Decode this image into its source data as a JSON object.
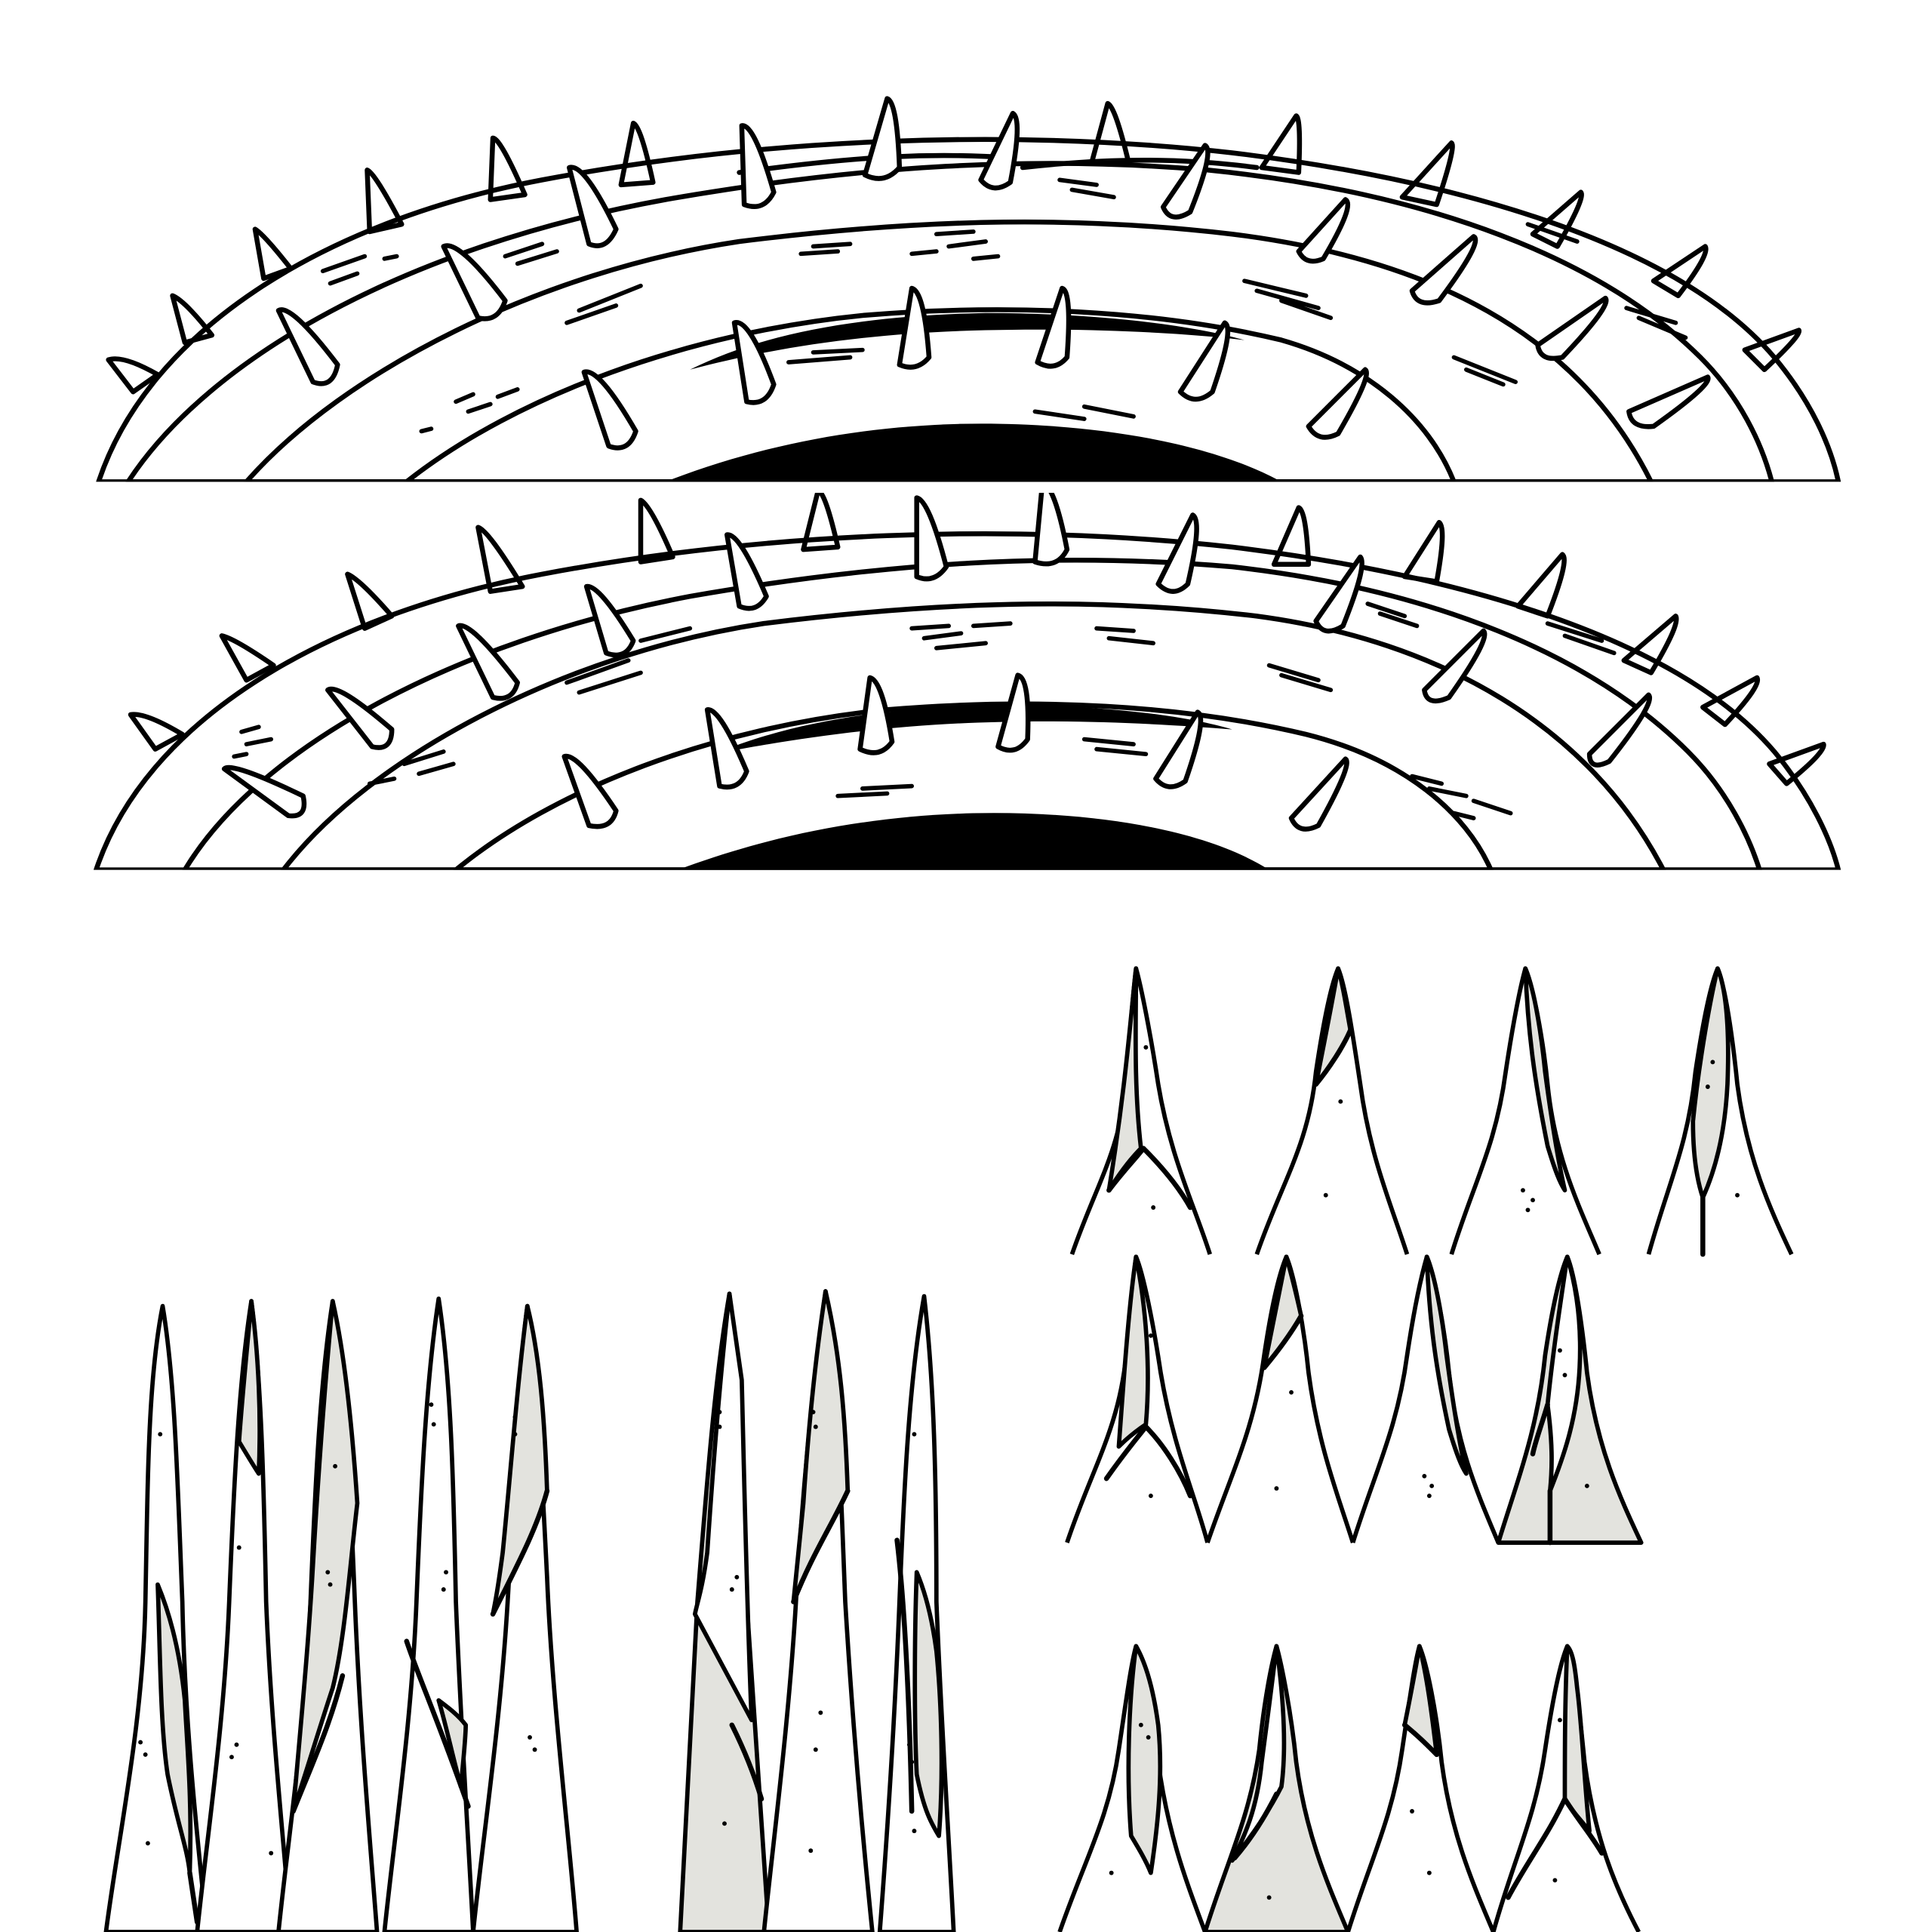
{
  "sprite_sheet": {
    "background": "#ffffff",
    "outline_color": "#000000",
    "palette": {
      "teal": "#47767a",
      "teal_light": "#4f7f82",
      "slate": "#3d4f5e",
      "slate_dark": "#2f3f4b",
      "mouth": "#000000",
      "spike": "#ffffff",
      "tooth": "#ffffff",
      "tooth_shade": "#e3e3de"
    },
    "sprites": [
      {
        "name": "spiked-worm-ring-frame-1",
        "type": "ring-segment",
        "band_order": [
          "teal",
          "slate",
          "teal",
          "slate",
          "mouth"
        ],
        "spike_count": 40
      },
      {
        "name": "spiked-worm-ring-frame-2",
        "type": "ring-segment",
        "band_order": [
          "slate_dark",
          "teal",
          "slate",
          "teal",
          "mouth"
        ],
        "spike_count": 40
      },
      {
        "name": "long-fangs-group-a",
        "type": "tooth-row",
        "count": 5
      },
      {
        "name": "long-fangs-group-b",
        "type": "tooth-row",
        "count": 3
      },
      {
        "name": "short-teeth-row-1",
        "type": "tooth-row",
        "count": 4
      },
      {
        "name": "short-teeth-row-2",
        "type": "tooth-row",
        "count": 4
      },
      {
        "name": "short-teeth-row-3",
        "type": "tooth-row",
        "count": 4
      }
    ]
  }
}
